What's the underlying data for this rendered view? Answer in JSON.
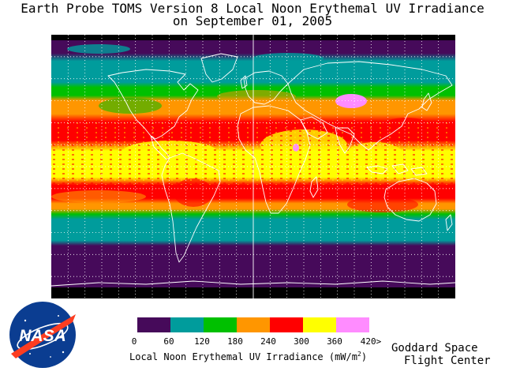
{
  "title": {
    "line1": "Earth Probe TOMS Version 8 Local Noon Erythemal UV Irradiance",
    "line2": "on September 01, 2005"
  },
  "map": {
    "projection": "cylindrical equidistant",
    "graticule": "dotted, 15° spacing",
    "coastline_color": "#ffffff",
    "no_data_color": "#000000",
    "band_colors_south_to_north": [
      "#460a5a",
      "#009c9c",
      "#00c000",
      "#ff9600",
      "#ff0000",
      "#ffff00",
      "#ff0000",
      "#ff9600",
      "#00c000",
      "#009c9c",
      "#460a5a"
    ]
  },
  "legend": {
    "colors": [
      "#460a5a",
      "#009c9c",
      "#00c000",
      "#ff9600",
      "#ff0000",
      "#ffff00",
      "#ff8cff"
    ],
    "ticks": [
      "0",
      "60",
      "120",
      "180",
      "240",
      "300",
      "360",
      "420>"
    ],
    "title_main": "Local Noon Erythemal UV Irradiance (mW/m",
    "title_sup": "2",
    "title_end": ")"
  },
  "logo": {
    "text": "NASA"
  },
  "credit": {
    "line1": "Goddard Space",
    "line2": "Flight Center"
  }
}
